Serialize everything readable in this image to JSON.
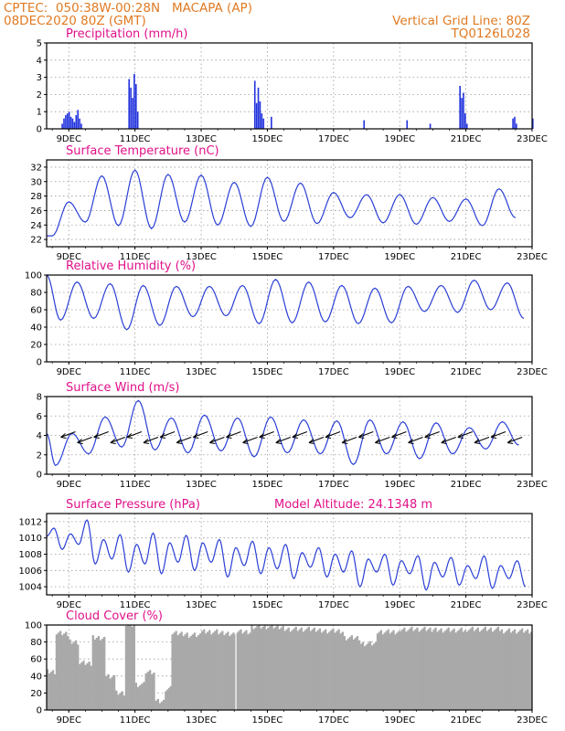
{
  "header": {
    "station": "CPTEC:  050:38W-00:28N   MACAPA (AP)",
    "init": "08DEC2020 80Z (GMT)",
    "grid_note": "Vertical Grid Line: 80Z",
    "model_id": "TQ0126L028"
  },
  "colors": {
    "header": "#e07a22",
    "title": "#e0118a",
    "line": "#2a3fd6",
    "bar": "#2233dd",
    "cloud": "#a9a9a9"
  },
  "x_axis": {
    "start_day": 8.33,
    "end_day": 23,
    "tick_days": [
      9,
      11,
      13,
      15,
      17,
      19,
      21,
      23
    ],
    "tick_labels": [
      "9DEC",
      "11DEC",
      "13DEC",
      "15DEC",
      "17DEC",
      "19DEC",
      "21DEC",
      "23DEC"
    ]
  },
  "chart_data": [
    {
      "type": "bar",
      "title": "Precipitation (mm/h)",
      "ylim": [
        0,
        5
      ],
      "yticks": [
        0,
        1,
        2,
        3,
        4,
        5
      ],
      "events": [
        {
          "day": 8.78,
          "values": [
            0.3,
            0.6,
            0.8,
            0.9,
            1.0,
            0.7,
            0.6,
            0.4,
            0.3
          ]
        },
        {
          "day": 9.2,
          "values": [
            0.8,
            1.1,
            0.6,
            0.3
          ]
        },
        {
          "day": 10.8,
          "values": [
            2.9,
            2.4,
            1.8,
            3.2,
            2.6,
            1.0
          ]
        },
        {
          "day": 14.6,
          "values": [
            2.8,
            1.5,
            2.4,
            1.6,
            0.9,
            0.6
          ]
        },
        {
          "day": 15.1,
          "values": [
            0.7
          ]
        },
        {
          "day": 17.9,
          "values": [
            0.5
          ]
        },
        {
          "day": 19.2,
          "values": [
            0.5
          ]
        },
        {
          "day": 19.9,
          "values": [
            0.3
          ]
        },
        {
          "day": 20.8,
          "values": [
            2.5,
            1.8,
            2.1,
            0.9,
            0.3
          ]
        },
        {
          "day": 22.4,
          "values": [
            0.6,
            0.7,
            0.3
          ]
        },
        {
          "day": 23.0,
          "values": [
            0.6
          ]
        }
      ]
    },
    {
      "type": "line",
      "title": "Surface Temperature (nC)",
      "ylim": [
        21,
        33
      ],
      "yticks": [
        22,
        24,
        26,
        28,
        30,
        32
      ],
      "start_value": 22.5,
      "daily_max": [
        27.2,
        30.8,
        31.6,
        31.0,
        30.9,
        29.9,
        30.6,
        29.8,
        28.5,
        28.2,
        28.2,
        27.8,
        27.6,
        29.0
      ],
      "daily_min": [
        22.5,
        24.4,
        23.9,
        23.5,
        24.4,
        24.0,
        23.8,
        24.5,
        24.2,
        25.0,
        24.3,
        24.1,
        24.5,
        23.9,
        25.0
      ]
    },
    {
      "type": "line",
      "title": "Relative Humidity (%)",
      "ylim": [
        0,
        100
      ],
      "yticks": [
        0,
        20,
        40,
        60,
        80,
        100
      ],
      "start_value": 100,
      "daily_min": [
        48,
        50,
        37,
        42,
        52,
        53,
        44,
        45,
        46,
        44,
        45,
        58,
        57,
        60,
        50
      ],
      "daily_max": [
        92,
        90,
        88,
        87,
        87,
        88,
        95,
        92,
        88,
        85,
        87,
        88,
        94,
        91
      ]
    },
    {
      "type": "line",
      "title": "Surface Wind (m/s)",
      "ylim": [
        0,
        8
      ],
      "yticks": [
        0,
        2,
        4,
        6,
        8
      ],
      "start_value": 4.2,
      "daily_min": [
        0.9,
        2.1,
        2.8,
        2.5,
        2.2,
        2.4,
        1.8,
        2.2,
        2.1,
        1.0,
        2.1,
        1.6,
        2.1,
        2.6,
        3.0
      ],
      "daily_max": [
        4.2,
        5.9,
        7.6,
        5.8,
        6.1,
        5.8,
        5.9,
        5.6,
        5.5,
        5.6,
        5.4,
        5.3,
        4.8,
        5.4
      ],
      "arrow_days": [
        9.2,
        9.7,
        10.2,
        10.7,
        11.2,
        11.7,
        12.2,
        12.7,
        13.2,
        13.7,
        14.2,
        14.7,
        15.2,
        15.7,
        16.2,
        16.7,
        17.2,
        17.7,
        18.2,
        18.7,
        19.2,
        19.7,
        20.2,
        20.7,
        21.2,
        21.7,
        22.2,
        22.7
      ],
      "arrow_level": 4
    },
    {
      "type": "line",
      "title": "Surface Pressure (hPa)",
      "annotation": "Model Altitude: 24.1348 m",
      "ylim": [
        1003,
        1013
      ],
      "yticks": [
        1004,
        1006,
        1008,
        1010,
        1012
      ],
      "start_value": 1010.2,
      "halfdaily_max": [
        1011.2,
        1010.5,
        1012.2,
        1009.8,
        1010.4,
        1009.2,
        1010.6,
        1009.4,
        1010.3,
        1009.4,
        1009.8,
        1008.8,
        1009.6,
        1008.8,
        1009.2,
        1008.2,
        1008.8,
        1008.0,
        1008.4,
        1007.4,
        1008.0,
        1007.2,
        1007.8,
        1007.0,
        1007.6,
        1006.6,
        1007.8,
        1006.6,
        1007.2,
        1006.4
      ],
      "halfdaily_min": [
        1008.6,
        1009.2,
        1006.8,
        1007.4,
        1005.8,
        1006.8,
        1005.6,
        1007.0,
        1006.0,
        1007.0,
        1005.2,
        1006.6,
        1005.6,
        1006.2,
        1005.0,
        1006.4,
        1005.2,
        1005.8,
        1004.0,
        1005.8,
        1004.2,
        1005.6,
        1003.6,
        1005.2,
        1004.2,
        1005.0,
        1003.8,
        1005.0,
        1004.0,
        1003.4
      ]
    },
    {
      "type": "area",
      "title": "Cloud Cover (%)",
      "ylim": [
        0,
        100
      ],
      "yticks": [
        0,
        20,
        40,
        60,
        80,
        100
      ],
      "segments": [
        {
          "from": 8.33,
          "to": 8.6,
          "value": 45
        },
        {
          "from": 8.6,
          "to": 9.0,
          "value": 90
        },
        {
          "from": 9.0,
          "to": 9.3,
          "value": 80
        },
        {
          "from": 9.3,
          "to": 9.7,
          "value": 55
        },
        {
          "from": 9.7,
          "to": 10.1,
          "value": 85
        },
        {
          "from": 10.1,
          "to": 10.4,
          "value": 40
        },
        {
          "from": 10.4,
          "to": 10.7,
          "value": 20
        },
        {
          "from": 10.7,
          "to": 11.0,
          "value": 100
        },
        {
          "from": 11.0,
          "to": 11.3,
          "value": 30
        },
        {
          "from": 11.3,
          "to": 11.6,
          "value": 45
        },
        {
          "from": 11.6,
          "to": 11.9,
          "value": 10
        },
        {
          "from": 11.9,
          "to": 12.1,
          "value": 25
        },
        {
          "from": 12.1,
          "to": 12.6,
          "value": 90
        },
        {
          "from": 12.6,
          "to": 13.0,
          "value": 88
        },
        {
          "from": 13.0,
          "to": 13.5,
          "value": 92
        },
        {
          "from": 13.5,
          "to": 14.0,
          "value": 90
        },
        {
          "from": 14.0,
          "to": 14.5,
          "value": 92
        },
        {
          "from": 14.5,
          "to": 15.5,
          "value": 98
        },
        {
          "from": 15.5,
          "to": 16.5,
          "value": 95
        },
        {
          "from": 16.5,
          "to": 17.3,
          "value": 93
        },
        {
          "from": 17.3,
          "to": 17.8,
          "value": 85
        },
        {
          "from": 17.8,
          "to": 18.3,
          "value": 78
        },
        {
          "from": 18.3,
          "to": 19.0,
          "value": 92
        },
        {
          "from": 19.0,
          "to": 20.0,
          "value": 95
        },
        {
          "from": 20.0,
          "to": 21.0,
          "value": 94
        },
        {
          "from": 21.0,
          "to": 22.0,
          "value": 95
        },
        {
          "from": 22.0,
          "to": 23.0,
          "value": 93
        }
      ]
    }
  ]
}
